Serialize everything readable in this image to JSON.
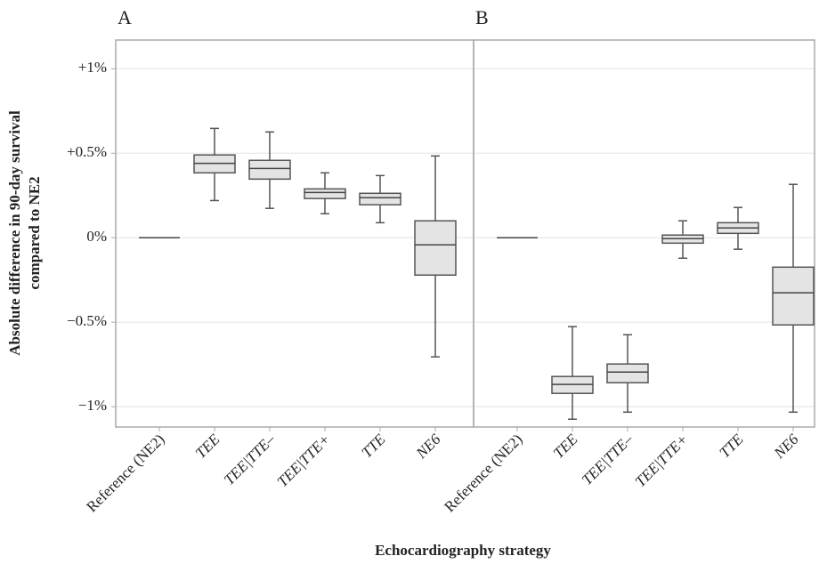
{
  "chart_data": [
    {
      "type": "box",
      "title": "A",
      "ylabel": [
        "Absolute difference in 90-day survival",
        "compared to NE2"
      ],
      "xlabel": "Echocardiography strategy",
      "categories": [
        "Reference (NE2)",
        "TEE",
        "TEE|TTE–",
        "TEE|TTE+",
        "TTE",
        "NE6"
      ],
      "boxes": [
        {
          "min": 0,
          "q1": 0,
          "median": 0,
          "q3": 0,
          "max": 0
        },
        {
          "min": 0.22,
          "q1": 0.384,
          "median": 0.44,
          "q3": 0.49,
          "max": 0.647
        },
        {
          "min": 0.174,
          "q1": 0.347,
          "median": 0.41,
          "q3": 0.458,
          "max": 0.626
        },
        {
          "min": 0.142,
          "q1": 0.232,
          "median": 0.268,
          "q3": 0.289,
          "max": 0.384
        },
        {
          "min": 0.089,
          "q1": 0.195,
          "median": 0.237,
          "q3": 0.263,
          "max": 0.368
        },
        {
          "min": -0.705,
          "q1": -0.221,
          "median": -0.042,
          "q3": 0.1,
          "max": 0.484
        }
      ],
      "color": "#e4e4e4",
      "ylim": [
        -1.12,
        1.17
      ],
      "yticks": [
        {
          "value": -1,
          "label": "−1%"
        },
        {
          "value": -0.5,
          "label": "−0.5%"
        },
        {
          "value": 0,
          "label": "0%"
        },
        {
          "value": 0.5,
          "label": "+0.5%"
        },
        {
          "value": 1,
          "label": "+1%"
        }
      ],
      "grid": true
    },
    {
      "type": "box",
      "title": "B",
      "categories": [
        "Reference (NE2)",
        "TEE",
        "TEE|TTE–",
        "TEE|TTE+",
        "TTE",
        "NE6"
      ],
      "boxes": [
        {
          "min": 0,
          "q1": 0,
          "median": 0,
          "q3": 0,
          "max": 0
        },
        {
          "min": -1.074,
          "q1": -0.921,
          "median": -0.868,
          "q3": -0.821,
          "max": -0.526
        },
        {
          "min": -1.032,
          "q1": -0.858,
          "median": -0.795,
          "q3": -0.747,
          "max": -0.574
        },
        {
          "min": -0.121,
          "q1": -0.032,
          "median": -0.005,
          "q3": 0.016,
          "max": 0.1
        },
        {
          "min": -0.068,
          "q1": 0.026,
          "median": 0.058,
          "q3": 0.089,
          "max": 0.179
        },
        {
          "min": -1.032,
          "q1": -0.516,
          "median": -0.326,
          "q3": -0.174,
          "max": 0.316
        }
      ],
      "color": "#e4e4e4",
      "ylim": [
        -1.12,
        1.17
      ],
      "yticks": [
        -1,
        -0.5,
        0,
        0.5,
        1
      ],
      "grid": true
    }
  ]
}
